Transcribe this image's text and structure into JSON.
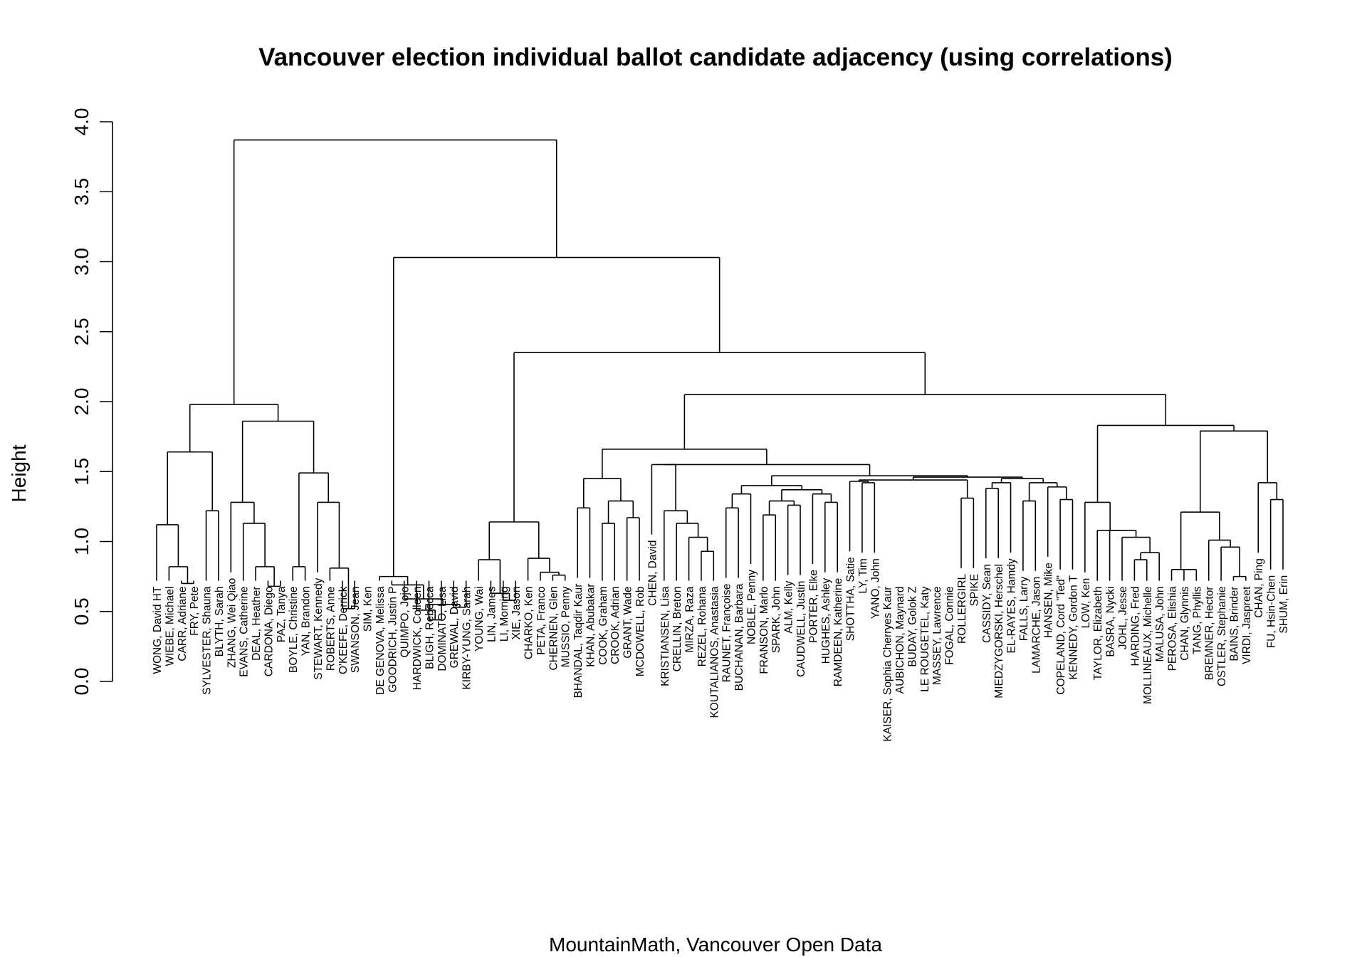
{
  "chart_data": {
    "type": "dendrogram",
    "title": "Vancouver election individual ballot candidate adjacency (using correlations)",
    "ylabel": "Height",
    "xlabel": "MountainMath, Vancouver Open Data",
    "ylim": [
      0,
      4
    ],
    "yticks": [
      "0.0",
      "0.5",
      "1.0",
      "1.5",
      "2.0",
      "2.5",
      "3.0",
      "3.5",
      "4.0"
    ],
    "labels": [
      "WONG, David HT",
      "WIEBE, Michael",
      "CARR, Adriane",
      "FRY, Pete",
      "SYLVESTER, Shauna",
      "BLYTH, Sarah",
      "ZHANG, Wei Qiao",
      "EVANS, Catherine",
      "DEAL, Heather",
      "CARDONA, Diego",
      "PAZ, Tanya",
      "BOYLE, Christine",
      "YAN, Brandon",
      "STEWART, Kennedy",
      "ROBERTS, Anne",
      "O'KEEFE, Derrick",
      "SWANSON, Jean",
      "SIM, Ken",
      "DE GENOVA, Melissa",
      "GOODRICH, Justin P",
      "QUIMPO, Jojo",
      "HARDWICK, Colleen",
      "BLIGH, Rebecca",
      "DOMINATO, Lisa",
      "GREWAL, David",
      "KIRBY-YUNG, Sarah",
      "YOUNG, Wai",
      "LIN, James",
      "LI, Morning",
      "XIE, Jason",
      "CHARKO, Ken",
      "PETA, Franco",
      "CHERNEN, Glen",
      "MUSSIO, Penny",
      "BHANDAL, Taqdir Kaur",
      "KHAN, Abubakar",
      "COOK, Graham",
      "CROOK, Adrian",
      "GRANT, Wade",
      "MCDOWELL, Rob",
      "CHEN, David",
      "KRISTIANSEN, Lisa",
      "CRELLIN, Breton",
      "MIRZA, Raza",
      "REZEL, Rohana",
      "KOUTALIANOS, Anastasia",
      "RAUNET, Françoise",
      "BUCHANAN, Barbara",
      "NOBLE, Penny",
      "FRANSON, Marlo",
      "SPARK, John",
      "ALM, Kelly",
      "CAUDWELL, Justin",
      "PORTER, Elke",
      "HUGHES, Ashley",
      "RAMDEEN, Katherine",
      "SHOTTHA, Satie",
      "LY, Tim",
      "YANO, John",
      "KAISER, Sophia Cherryes Kaur",
      "AUBICHON, Maynard",
      "BUDAY, Golok Z",
      "LE ROUGETEL, Katy",
      "MASSEY, Lawrence",
      "FOGAL, Connie",
      "ROLLERGIRL",
      "SPIKE",
      "CASSIDY, Sean",
      "MIEDZYGORSKI, Herschel",
      "EL-RAYES, Hamdy",
      "FALLS, Larry",
      "LAMARCHE, Jason",
      "HANSEN, Mike",
      "COPELAND, Cord \"Ted\"",
      "KENNEDY, Gordon T",
      "LOW, Ken",
      "TAYLOR, Elizabeth",
      "BASRA, Nycki",
      "JOHL, Jesse",
      "HARDING, Fred",
      "MOLLINEAUX, Michelle",
      "MALUSA, John",
      "PEROSA, Elishia",
      "CHAN, Glynnis",
      "TANG, Phyllis",
      "BREMNER, Hector",
      "OSTLER, Stephanie",
      "BAINS, Brinder",
      "VIRDI, Jaspreet",
      "CHAN, Ping",
      "FU, Hsin-Chen",
      "SHUM, Erin"
    ],
    "merges": [
      [
        "m1",
        "CARR, Adriane",
        "FRY, Pete",
        0.7
      ],
      [
        "m2",
        "WIEBE, Michael",
        "m1",
        0.82
      ],
      [
        "m3",
        "WONG, David HT",
        "m2",
        1.12
      ],
      [
        "m4",
        "SYLVESTER, Shauna",
        "BLYTH, Sarah",
        1.22
      ],
      [
        "m5",
        "m3",
        "m4",
        1.64
      ],
      [
        "m6",
        "CARDONA, Diego",
        "PAZ, Tanya",
        0.68
      ],
      [
        "m7",
        "DEAL, Heather",
        "m6",
        0.82
      ],
      [
        "m8",
        "EVANS, Catherine",
        "m7",
        1.13
      ],
      [
        "m9",
        "ZHANG, Wei Qiao",
        "m8",
        1.28
      ],
      [
        "m10",
        "BOYLE, Christine",
        "YAN, Brandon",
        0.82
      ],
      [
        "m11",
        "O'KEEFE, Derrick",
        "SWANSON, Jean",
        0.52
      ],
      [
        "m12",
        "ROBERTS, Anne",
        "m11",
        0.81
      ],
      [
        "m13",
        "STEWART, Kennedy",
        "m12",
        1.28
      ],
      [
        "m14",
        "m10",
        "m13",
        1.49
      ],
      [
        "m15",
        "m9",
        "m14",
        1.86
      ],
      [
        "m16",
        "m5",
        "m15",
        1.98
      ],
      [
        "m17",
        "GREWAL, David",
        "KIRBY-YUNG, Sarah",
        0.53
      ],
      [
        "m18",
        "BLIGH, Rebecca",
        "DOMINATO, Lisa",
        0.44
      ],
      [
        "m19",
        "HARDWICK, Colleen",
        "m18",
        0.51
      ],
      [
        "m20",
        "m19",
        "m17",
        0.55
      ],
      [
        "m21",
        "QUIMPO, Jojo",
        "m20",
        0.59
      ],
      [
        "m22",
        "GOODRICH, Justin P",
        "m21",
        0.69
      ],
      [
        "m23",
        "DE GENOVA, Melissa",
        "m22",
        0.75
      ],
      [
        "m24",
        "LI, Morning",
        "XIE, Jason",
        0.58
      ],
      [
        "m25",
        "LIN, James",
        "m24",
        0.63
      ],
      [
        "m26",
        "YOUNG, Wai",
        "m25",
        0.87
      ],
      [
        "m27",
        "CHERNEN, Glen",
        "MUSSIO, Penny",
        0.76
      ],
      [
        "m28",
        "PETA, Franco",
        "m27",
        0.78
      ],
      [
        "m29",
        "CHARKO, Ken",
        "m28",
        0.88
      ],
      [
        "m30",
        "m26",
        "m29",
        1.14
      ],
      [
        "m31",
        "BHANDAL, Taqdir Kaur",
        "KHAN, Abubakar",
        1.24
      ],
      [
        "m32",
        "COOK, Graham",
        "CROOK, Adrian",
        1.13
      ],
      [
        "m33",
        "GRANT, Wade",
        "MCDOWELL, Rob",
        1.17
      ],
      [
        "m34",
        "m32",
        "m33",
        1.29
      ],
      [
        "m35",
        "m31",
        "m34",
        1.45
      ],
      [
        "m36",
        "REZEL, Rohana",
        "KOUTALIANOS, Anastasia",
        0.93
      ],
      [
        "m37",
        "MIRZA, Raza",
        "m36",
        1.03
      ],
      [
        "m38",
        "CRELLIN, Breton",
        "m37",
        1.13
      ],
      [
        "m39",
        "KRISTIANSEN, Lisa",
        "m38",
        1.22
      ],
      [
        "m40",
        "RAUNET, Françoise",
        "BUCHANAN, Barbara",
        1.24
      ],
      [
        "m41",
        "NOBLE, Penny",
        "m40",
        1.34
      ],
      [
        "m42",
        "FRANSON, Marlo",
        "SPARK, John",
        1.19
      ],
      [
        "m43",
        "ALM, Kelly",
        "CAUDWELL, Justin",
        1.26
      ],
      [
        "m44",
        "m42",
        "m43",
        1.29
      ],
      [
        "m45",
        "HUGHES, Ashley",
        "RAMDEEN, Katherine",
        1.28
      ],
      [
        "m46",
        "PORTER, Elke",
        "m45",
        1.34
      ],
      [
        "m47",
        "m44",
        "m46",
        1.37
      ],
      [
        "m48",
        "m41",
        "m47",
        1.4
      ],
      [
        "m49",
        "LY, Tim",
        "YANO, John",
        1.42
      ],
      [
        "m50",
        "SHOTTHA, Satie",
        "m49",
        1.43
      ],
      [
        "m51",
        "ROLLERGIRL",
        "SPIKE",
        1.31
      ],
      [
        "m52",
        "m50",
        "m51",
        1.44
      ],
      [
        "m53",
        "CASSIDY, Sean",
        "MIEDZYGORSKI, Herschel",
        1.38
      ],
      [
        "m54",
        "EL-RAYES, Hamdy",
        "m53",
        1.42
      ],
      [
        "m55",
        "FALLS, Larry",
        "LAMARCHE, Jason",
        1.29
      ],
      [
        "m56",
        "COPELAND, Cord \"Ted\"",
        "KENNEDY, Gordon T",
        1.3
      ],
      [
        "m57",
        "HANSEN, Mike",
        "m56",
        1.39
      ],
      [
        "m58",
        "m55",
        "m57",
        1.42
      ],
      [
        "m59",
        "m54",
        "m58",
        1.45
      ],
      [
        "m60",
        "m52",
        "m59",
        1.46
      ],
      [
        "m61",
        "m48",
        "m60",
        1.47
      ],
      [
        "m62",
        "CHEN, David",
        "m39",
        1.55
      ],
      [
        "m63",
        "m62",
        "m61",
        1.55
      ],
      [
        "m64",
        "m35",
        "m63",
        1.66
      ],
      [
        "m65",
        "HARDING, Fred",
        "MOLLINEAUX, Michelle",
        0.87
      ],
      [
        "m66",
        "MALUSA, John",
        "m65",
        0.92
      ],
      [
        "m67",
        "JOHL, Jesse",
        "m66",
        1.03
      ],
      [
        "m68",
        "BASRA, Nycki",
        "m67",
        1.08
      ],
      [
        "m69",
        "TAYLOR, Elizabeth",
        "m68",
        1.08
      ],
      [
        "m70",
        "LOW, Ken",
        "m69",
        1.28
      ],
      [
        "m71",
        "BAINS, Brinder",
        "VIRDI, Jaspreet",
        0.75
      ],
      [
        "m72",
        "OSTLER, Stephanie",
        "m71",
        0.96
      ],
      [
        "m73",
        "BREMNER, Hector",
        "m72",
        1.01
      ],
      [
        "m74",
        "CHAN, Glynnis",
        "TANG, Phyllis",
        0.8
      ],
      [
        "m75",
        "PEROSA, Elishia",
        "m74",
        0.8
      ],
      [
        "m76",
        "m75",
        "m73",
        1.21
      ],
      [
        "m77",
        "FU, Hsin-Chen",
        "SHUM, Erin",
        1.3
      ],
      [
        "m78",
        "CHAN, Ping",
        "m77",
        1.42
      ],
      [
        "m79",
        "m76",
        "m78",
        1.79
      ],
      [
        "m80",
        "m70",
        "m79",
        1.83
      ],
      [
        "m81",
        "m64",
        "m80",
        2.05
      ],
      [
        "m82",
        "m30",
        "m81",
        2.35
      ],
      [
        "m83",
        "m23",
        "m82",
        3.03
      ],
      [
        "m84",
        "m16",
        "m83",
        3.87
      ]
    ]
  }
}
